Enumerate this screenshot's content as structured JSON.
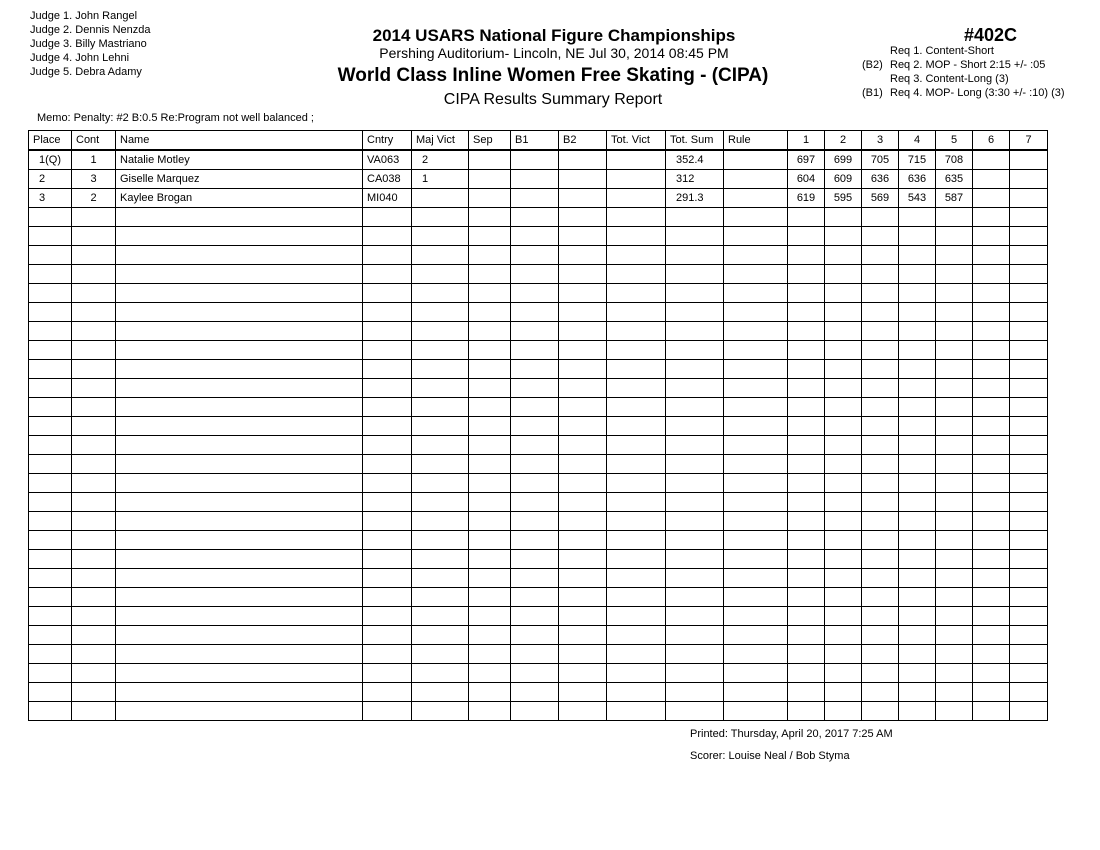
{
  "judges": [
    {
      "label": "Judge  1.",
      "name": "John Rangel"
    },
    {
      "label": "Judge  2.",
      "name": "Dennis Nenzda"
    },
    {
      "label": "Judge  3.",
      "name": "Billy Mastriano"
    },
    {
      "label": "Judge  4.",
      "name": "John Lehni"
    },
    {
      "label": "Judge  5.",
      "name": "Debra Adamy"
    }
  ],
  "header": {
    "title": "2014 USARS National Figure Championships",
    "venue": "Pershing Auditorium- Lincoln, NE  Jul 30, 2014  08:45 PM",
    "event": "World Class Inline Women Free Skating -  (CIPA)",
    "report": "CIPA Results Summary Report",
    "number": "#402C"
  },
  "requirements": [
    {
      "prefix": "",
      "text": "Req  1.  Content-Short"
    },
    {
      "prefix": "(B2)",
      "text": "Req  2.  MOP - Short 2:15 +/- :05"
    },
    {
      "prefix": "",
      "text": "Req  3.  Content-Long (3)"
    },
    {
      "prefix": "(B1)",
      "text": "Req  4.  MOP- Long (3:30 +/- :10) (3)"
    }
  ],
  "memo": "Memo: Penalty: #2 B:0.5 Re:Program not well balanced ;",
  "table": {
    "columns": [
      "Place",
      "Cont",
      "Name",
      "Cntry",
      "Maj Vict",
      "Sep",
      "B1",
      "B2",
      "Tot. Vict",
      "Tot. Sum",
      "Rule",
      "1",
      "2",
      "3",
      "4",
      "5",
      "6",
      "7"
    ],
    "rows": [
      [
        "1(Q)",
        "1",
        "Natalie Motley",
        "VA063",
        "2",
        "",
        "",
        "",
        "",
        "352.4",
        "",
        "697",
        "699",
        "705",
        "715",
        "708",
        "",
        ""
      ],
      [
        "2",
        "3",
        "Giselle Marquez",
        "CA038",
        "1",
        "",
        "",
        "",
        "",
        "312",
        "",
        "604",
        "609",
        "636",
        "636",
        "635",
        "",
        ""
      ],
      [
        "3",
        "2",
        "Kaylee Brogan",
        "MI040",
        "",
        "",
        "",
        "",
        "",
        "291.3",
        "",
        "619",
        "595",
        "569",
        "543",
        "587",
        "",
        ""
      ]
    ]
  },
  "footer": {
    "printed": "Printed:  Thursday, April 20, 2017  7:25 AM",
    "scorer": "Scorer:  Louise Neal / Bob Styma"
  }
}
